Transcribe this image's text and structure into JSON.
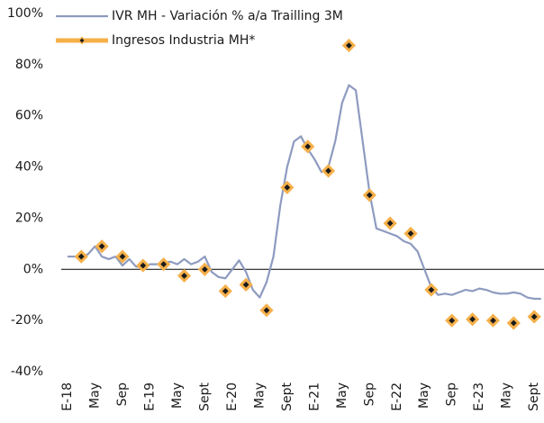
{
  "chart_data": {
    "type": "line",
    "categories": [
      "E-18",
      null,
      null,
      null,
      "May",
      null,
      null,
      null,
      "Sep",
      null,
      null,
      null,
      "E-19",
      null,
      null,
      null,
      "May",
      null,
      null,
      null,
      "Sept",
      null,
      null,
      null,
      "E-20",
      null,
      null,
      null,
      "May",
      null,
      null,
      null,
      "Sept",
      null,
      null,
      null,
      "E-21",
      null,
      null,
      null,
      "May",
      null,
      null,
      null,
      "Sep",
      null,
      null,
      null,
      "E-22",
      null,
      null,
      null,
      "May",
      null,
      null,
      null,
      "Sep",
      null,
      null,
      null,
      "E-23",
      null,
      null,
      null,
      "May",
      null,
      null,
      null,
      "Sept",
      null
    ],
    "series": [
      {
        "name": "IVR MH - Variación % a/a Trailling 3M",
        "color": "#8e9bc0",
        "style": "line",
        "values": [
          5,
          5,
          4.5,
          6,
          9,
          5,
          4,
          5,
          1.5,
          4,
          1,
          1,
          2,
          2,
          2.5,
          3,
          2,
          4,
          2,
          3,
          5,
          -1,
          -3,
          -3.5,
          0,
          3.5,
          -1,
          -8,
          -11,
          -5,
          5,
          25,
          40,
          50,
          52,
          47,
          43,
          38,
          40,
          50,
          65,
          72,
          70,
          50,
          30,
          16,
          15,
          14,
          13,
          11,
          10,
          7,
          0,
          -7,
          -10,
          -9.5,
          -10,
          -9,
          -8,
          -8.5,
          -7.5,
          -8,
          -9,
          -9.5,
          -9.5,
          -9,
          -9.5,
          -11,
          -11.5,
          -11.5
        ]
      },
      {
        "name": "Ingresos Industria MH*",
        "color": "#f5b04a",
        "marker_color": "#1a1a1a",
        "style": "markers",
        "values": [
          null,
          null,
          5,
          null,
          null,
          9,
          null,
          null,
          5,
          null,
          null,
          1.5,
          null,
          null,
          2,
          null,
          null,
          -2.5,
          null,
          null,
          0,
          null,
          null,
          -8.5,
          null,
          null,
          -6,
          null,
          null,
          -16,
          null,
          null,
          32,
          null,
          null,
          48,
          null,
          null,
          38.5,
          null,
          null,
          87.5,
          null,
          null,
          29,
          null,
          null,
          18,
          null,
          null,
          14,
          null,
          null,
          -8,
          null,
          null,
          -20,
          null,
          null,
          -19.5,
          null,
          null,
          -20,
          null,
          null,
          -21,
          null,
          null,
          -18.5,
          null
        ]
      }
    ],
    "ylim": [
      -40,
      100
    ],
    "yticks": [
      {
        "value": -40,
        "label": "-40%"
      },
      {
        "value": -20,
        "label": "-20%"
      },
      {
        "value": 0,
        "label": "0%"
      },
      {
        "value": 20,
        "label": "20%"
      },
      {
        "value": 40,
        "label": "40%"
      },
      {
        "value": 60,
        "label": "60%"
      },
      {
        "value": 80,
        "label": "80%"
      },
      {
        "value": 100,
        "label": "100%"
      }
    ],
    "grid": false,
    "legend": "top-left"
  }
}
